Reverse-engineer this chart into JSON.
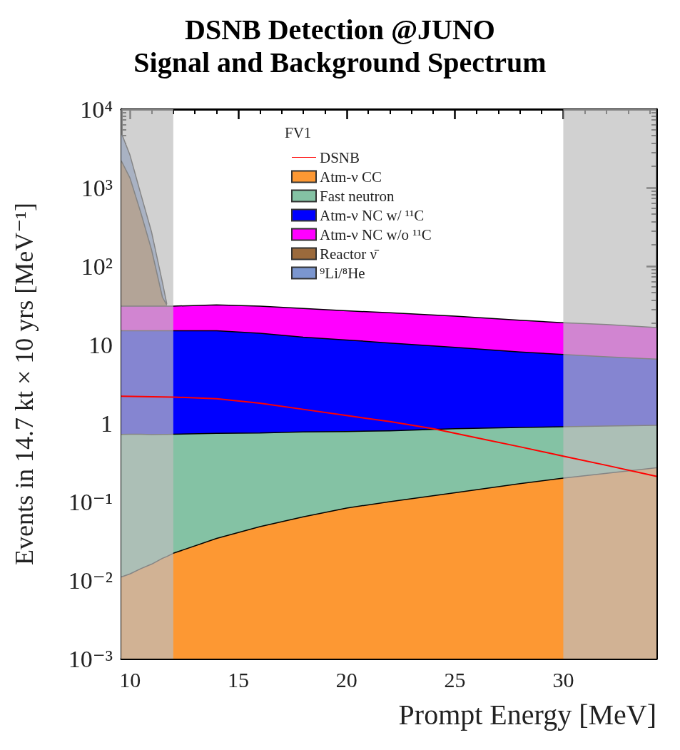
{
  "chart_data": {
    "type": "area",
    "title": "DSNB Detection @JUNO",
    "subtitle": "Signal and Background Spectrum",
    "xlabel": "Prompt Energy [MeV]",
    "ylabel": "Events in 14.7 kt × 10 yrs [MeV⁻¹]",
    "legend_title": "FV1",
    "stacked": true,
    "log": "y",
    "grid": false,
    "legend": "top",
    "x": [
      9.6,
      10,
      10.5,
      11,
      11.5,
      11.7,
      12,
      14,
      16,
      18,
      20,
      22,
      25,
      28,
      30,
      32,
      34.3
    ],
    "xlim": [
      9.6,
      34.3
    ],
    "xticks": [
      10,
      15,
      20,
      25,
      30
    ],
    "ylim": [
      0.001,
      10000
    ],
    "yticks": [
      {
        "value": 0.001,
        "label": "10⁻³"
      },
      {
        "value": 0.01,
        "label": "10⁻²"
      },
      {
        "value": 0.1,
        "label": "10⁻¹"
      },
      1,
      10,
      {
        "value": 100,
        "label": "10²"
      },
      {
        "value": 1000,
        "label": "10³"
      },
      {
        "value": 10000,
        "label": "10⁴"
      }
    ],
    "series": [
      {
        "name": "DSNB",
        "type": "line",
        "color": "#ff0000",
        "x": [
          9.6,
          12,
          14,
          16,
          18,
          20,
          22,
          24,
          26,
          28,
          30,
          32,
          34.3
        ],
        "values": [
          2.2,
          2.15,
          2.05,
          1.8,
          1.5,
          1.25,
          1.05,
          0.85,
          0.65,
          0.5,
          0.38,
          0.29,
          0.21
        ]
      },
      {
        "name": "Atm-ν CC",
        "color": "#fd9833",
        "values": [
          0.011,
          0.012,
          0.014,
          0.016,
          0.019,
          0.02,
          0.022,
          0.034,
          0.048,
          0.064,
          0.083,
          0.1,
          0.13,
          0.17,
          0.2,
          0.23,
          0.27
        ]
      },
      {
        "name": "Fast neutron",
        "color": "#84c2a4",
        "values": [
          0.71,
          0.71,
          0.71,
          0.7,
          0.7,
          0.7,
          0.7,
          0.71,
          0.7,
          0.71,
          0.7,
          0.7,
          0.72,
          0.71,
          0.7,
          0.69,
          0.67
        ]
      },
      {
        "name": "Atm-ν NC w/ ¹¹C",
        "color": "#0000ff",
        "values": [
          14.3,
          14.3,
          14.3,
          14.3,
          14.3,
          14.3,
          14.3,
          14.3,
          13.2,
          11.7,
          10.7,
          9.7,
          8.4,
          7.2,
          6.6,
          6.1,
          5.6
        ]
      },
      {
        "name": "Atm-ν NC w/o ¹¹C",
        "color": "#ff00ff",
        "values": [
          16,
          16,
          16,
          16,
          16,
          16,
          16,
          17,
          17,
          16.5,
          15.5,
          15,
          13.8,
          12.4,
          11.5,
          11,
          10
        ]
      },
      {
        "name": "Reactor ν̄",
        "color": "#9b6a3c",
        "values": [
          2169,
          1299,
          449,
          129,
          9,
          1,
          null,
          null,
          null,
          null,
          null,
          null,
          null,
          null,
          null,
          null,
          null
        ]
      },
      {
        "name": "⁹Li/⁸He",
        "color": "#7b96cf",
        "values": [
          2800,
          1270,
          350,
          110,
          22,
          1,
          null,
          null,
          null,
          null,
          null,
          null,
          null,
          null,
          null,
          null,
          null
        ]
      }
    ],
    "bands": [
      {
        "axis": "x",
        "from": 9.6,
        "to": 12,
        "color": "#bebebe"
      },
      {
        "axis": "x",
        "from": 30,
        "to": 34.3,
        "color": "#bebebe"
      }
    ]
  }
}
